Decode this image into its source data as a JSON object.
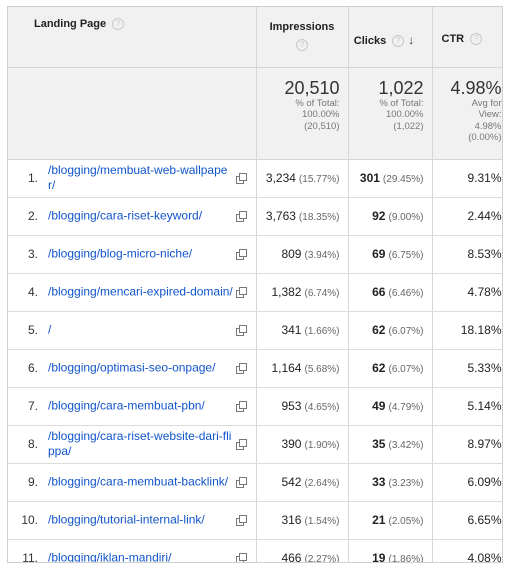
{
  "header": {
    "landing_page": "Landing Page",
    "impressions": "Impressions",
    "clicks": "Clicks",
    "ctr": "CTR",
    "help_glyph": "?",
    "sort_glyph": "↓"
  },
  "totals": {
    "impressions": {
      "value": "20,510",
      "l1": "% of Total:",
      "l2": "100.00%",
      "l3": "(20,510)"
    },
    "clicks": {
      "value": "1,022",
      "l1": "% of Total:",
      "l2": "100.00%",
      "l3": "(1,022)"
    },
    "ctr": {
      "value": "4.98%",
      "l1": "Avg for",
      "l2": "View:",
      "l3": "4.98%",
      "l4": "(0.00%)"
    }
  },
  "rows": [
    {
      "num": "1.",
      "page": "/blogging/membuat-web-wallpaper/",
      "imp": "3,234",
      "imp_pct": "(15.77%)",
      "clicks": "301",
      "clicks_pct": "(29.45%)",
      "ctr": "9.31%"
    },
    {
      "num": "2.",
      "page": "/blogging/cara-riset-keyword/",
      "imp": "3,763",
      "imp_pct": "(18.35%)",
      "clicks": "92",
      "clicks_pct": "(9.00%)",
      "ctr": "2.44%"
    },
    {
      "num": "3.",
      "page": "/blogging/blog-micro-niche/",
      "imp": "809",
      "imp_pct": "(3.94%)",
      "clicks": "69",
      "clicks_pct": "(6.75%)",
      "ctr": "8.53%"
    },
    {
      "num": "4.",
      "page": "/blogging/mencari-expired-domain/",
      "imp": "1,382",
      "imp_pct": "(6.74%)",
      "clicks": "66",
      "clicks_pct": "(6.46%)",
      "ctr": "4.78%"
    },
    {
      "num": "5.",
      "page": "/",
      "imp": "341",
      "imp_pct": "(1.66%)",
      "clicks": "62",
      "clicks_pct": "(6.07%)",
      "ctr": "18.18%"
    },
    {
      "num": "6.",
      "page": "/blogging/optimasi-seo-onpage/",
      "imp": "1,164",
      "imp_pct": "(5.68%)",
      "clicks": "62",
      "clicks_pct": "(6.07%)",
      "ctr": "5.33%"
    },
    {
      "num": "7.",
      "page": "/blogging/cara-membuat-pbn/",
      "imp": "953",
      "imp_pct": "(4.65%)",
      "clicks": "49",
      "clicks_pct": "(4.79%)",
      "ctr": "5.14%"
    },
    {
      "num": "8.",
      "page": "/blogging/cara-riset-website-dari-flippa/",
      "imp": "390",
      "imp_pct": "(1.90%)",
      "clicks": "35",
      "clicks_pct": "(3.42%)",
      "ctr": "8.97%"
    },
    {
      "num": "9.",
      "page": "/blogging/cara-membuat-backlink/",
      "imp": "542",
      "imp_pct": "(2.64%)",
      "clicks": "33",
      "clicks_pct": "(3.23%)",
      "ctr": "6.09%"
    },
    {
      "num": "10.",
      "page": "/blogging/tutorial-internal-link/",
      "imp": "316",
      "imp_pct": "(1.54%)",
      "clicks": "21",
      "clicks_pct": "(2.05%)",
      "ctr": "6.65%"
    },
    {
      "num": "11.",
      "page": "/blogging/iklan-mandiri/",
      "imp": "466",
      "imp_pct": "(2.27%)",
      "clicks": "19",
      "clicks_pct": "(1.86%)",
      "ctr": "4.08%"
    }
  ]
}
